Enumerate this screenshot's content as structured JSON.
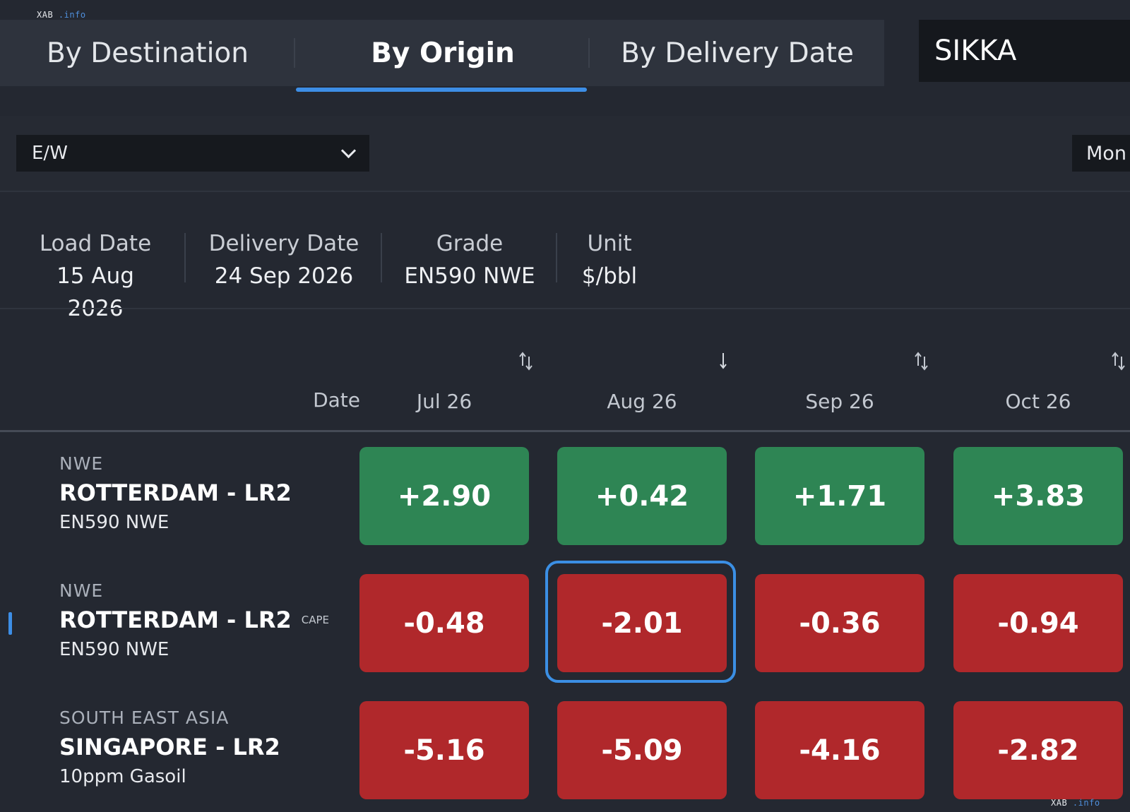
{
  "watermark": {
    "brand": "XAB",
    "domain": ".info"
  },
  "tabs": [
    {
      "label": "By Destination",
      "active": false
    },
    {
      "label": "By Origin",
      "active": true
    },
    {
      "label": "By Delivery Date",
      "active": false
    }
  ],
  "search": {
    "value": "SIKKA"
  },
  "filter": {
    "selected": "E/W",
    "right_selected": "Mon"
  },
  "info": [
    {
      "label": "Load Date",
      "value": "15 Aug 2026"
    },
    {
      "label": "Delivery Date",
      "value": "24 Sep 2026"
    },
    {
      "label": "Grade",
      "value": "EN590 NWE"
    },
    {
      "label": "Unit",
      "value": "$/bbl"
    }
  ],
  "table": {
    "date_label": "Date",
    "columns": [
      {
        "label": "Jul 26",
        "sort": "both"
      },
      {
        "label": "Aug 26",
        "sort": "down"
      },
      {
        "label": "Sep 26",
        "sort": "both"
      },
      {
        "label": "Oct 26",
        "sort": "both"
      }
    ],
    "rows": [
      {
        "region": "NWE",
        "route": "ROTTERDAM - LR2",
        "tag": "",
        "grade": "EN590 NWE",
        "values": [
          "+2.90",
          "+0.42",
          "+1.71",
          "+3.83"
        ]
      },
      {
        "region": "NWE",
        "route": "ROTTERDAM - LR2",
        "tag": "CAPE",
        "grade": "EN590 NWE",
        "values": [
          "-0.48",
          "-2.01",
          "-0.36",
          "-0.94"
        ]
      },
      {
        "region": "SOUTH EAST ASIA",
        "route": "SINGAPORE - LR2",
        "tag": "",
        "grade": "10ppm Gasoil",
        "values": [
          "-5.16",
          "-5.09",
          "-4.16",
          "-2.82"
        ]
      }
    ],
    "selected_cell": {
      "row": 1,
      "col": 1
    }
  },
  "colors": {
    "accent": "#3d8ee6",
    "positive": "#2e8554",
    "negative": "#b0282b",
    "background": "#242831"
  }
}
